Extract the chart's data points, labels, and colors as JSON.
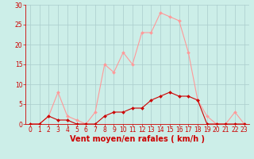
{
  "x": [
    0,
    1,
    2,
    3,
    4,
    5,
    6,
    7,
    8,
    9,
    10,
    11,
    12,
    13,
    14,
    15,
    16,
    17,
    18,
    19,
    20,
    21,
    22,
    23
  ],
  "wind_avg": [
    0,
    0,
    2,
    1,
    1,
    0,
    0,
    0,
    2,
    3,
    3,
    4,
    4,
    6,
    7,
    8,
    7,
    7,
    6,
    0,
    0,
    0,
    0,
    0
  ],
  "wind_gust": [
    0,
    0,
    2,
    8,
    2,
    1,
    0,
    3,
    15,
    13,
    18,
    15,
    23,
    23,
    28,
    27,
    26,
    18,
    6,
    2,
    0,
    0,
    3,
    0
  ],
  "color_avg": "#cc0000",
  "color_gust": "#ff9999",
  "bg_color": "#cceee8",
  "grid_color": "#aacccc",
  "xlabel": "Vent moyen/en rafales ( km/h )",
  "ylim": [
    0,
    30
  ],
  "xlim_min": -0.5,
  "xlim_max": 23.5,
  "yticks": [
    0,
    5,
    10,
    15,
    20,
    25,
    30
  ],
  "xticks": [
    0,
    1,
    2,
    3,
    4,
    5,
    6,
    7,
    8,
    9,
    10,
    11,
    12,
    13,
    14,
    15,
    16,
    17,
    18,
    19,
    20,
    21,
    22,
    23
  ],
  "tick_fontsize": 5.5,
  "xlabel_fontsize": 7,
  "marker_size": 2.0,
  "linewidth": 0.8
}
